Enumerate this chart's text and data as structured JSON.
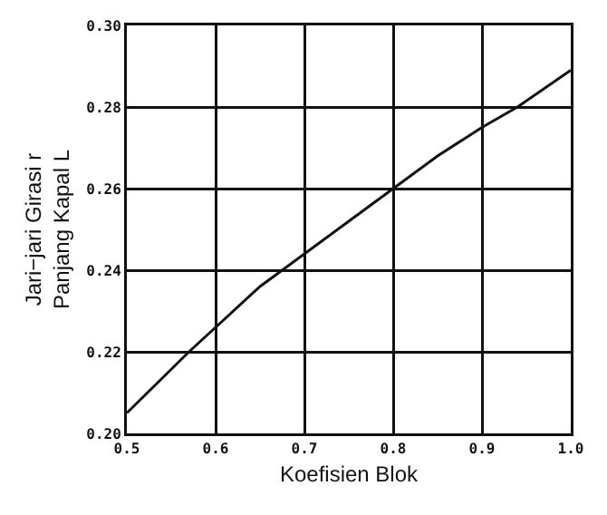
{
  "chart_data": {
    "type": "line",
    "xlabel": "Koefisien Blok",
    "ylabel": "Jari−jari Girasi r\nPanjang Kapal L",
    "x": [
      0.5,
      0.57,
      0.6,
      0.65,
      0.7,
      0.75,
      0.8,
      0.85,
      0.9,
      0.94,
      1.0
    ],
    "series": [
      {
        "color": "#111111",
        "values": [
          0.205,
          0.22,
          0.226,
          0.236,
          0.244,
          0.252,
          0.26,
          0.268,
          0.275,
          0.28,
          0.289
        ]
      }
    ],
    "xlim": [
      0.5,
      1.0
    ],
    "xticks": [
      0.5,
      0.6,
      0.7,
      0.8,
      0.9,
      {
        "value": 1,
        "label": "1.0"
      }
    ],
    "ylim": [
      0.2,
      0.3
    ],
    "yticks": [
      {
        "value": 0.2,
        "label": "0.20"
      },
      0.22,
      0.24,
      0.26,
      0.28,
      {
        "value": 0.3,
        "label": "0.30"
      }
    ],
    "grid": true,
    "marker": "none",
    "line_style": "solid"
  }
}
